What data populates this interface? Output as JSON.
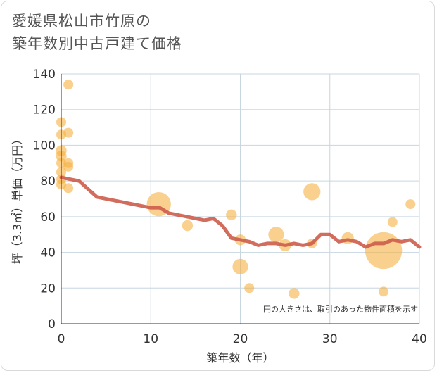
{
  "title": {
    "line1": "愛媛県松山市竹原の",
    "line2": "築年数別中古戸建て価格"
  },
  "chart_data": {
    "type": "scatter",
    "xlabel": "築年数（年）",
    "ylabel": "坪（3.3㎡）単価（万円）",
    "xlim": [
      0,
      40
    ],
    "ylim": [
      0,
      140
    ],
    "xticks": [
      0,
      10,
      20,
      30,
      40
    ],
    "yticks": [
      0,
      20,
      40,
      60,
      80,
      100,
      120,
      140
    ],
    "grid": true,
    "annotation": "円の大きさは、取引のあった物件面積を示す",
    "colors": {
      "bubble": "#f5b041",
      "line": "#cd5c4a",
      "grid": "#c8d6e0"
    },
    "bubbles": [
      {
        "x": 0,
        "y": 113,
        "size": 1
      },
      {
        "x": 0,
        "y": 106,
        "size": 1
      },
      {
        "x": 0,
        "y": 97,
        "size": 1.2
      },
      {
        "x": 0,
        "y": 94,
        "size": 1.2
      },
      {
        "x": 0,
        "y": 90,
        "size": 1
      },
      {
        "x": 0,
        "y": 85,
        "size": 1
      },
      {
        "x": 0,
        "y": 81,
        "size": 1
      },
      {
        "x": 0,
        "y": 78,
        "size": 1
      },
      {
        "x": 0.8,
        "y": 134,
        "size": 1
      },
      {
        "x": 0.8,
        "y": 107,
        "size": 1
      },
      {
        "x": 0.8,
        "y": 90,
        "size": 1
      },
      {
        "x": 0.8,
        "y": 88,
        "size": 1
      },
      {
        "x": 0.8,
        "y": 76,
        "size": 1
      },
      {
        "x": 10.9,
        "y": 67,
        "size": 6
      },
      {
        "x": 14.1,
        "y": 55,
        "size": 1.2
      },
      {
        "x": 19,
        "y": 61,
        "size": 1.2
      },
      {
        "x": 20,
        "y": 47,
        "size": 1.2
      },
      {
        "x": 20,
        "y": 32,
        "size": 2.5
      },
      {
        "x": 21,
        "y": 20,
        "size": 1
      },
      {
        "x": 24,
        "y": 50,
        "size": 2.5
      },
      {
        "x": 25,
        "y": 44,
        "size": 1.5
      },
      {
        "x": 26,
        "y": 17,
        "size": 1.2
      },
      {
        "x": 28,
        "y": 74,
        "size": 3
      },
      {
        "x": 28,
        "y": 45,
        "size": 1
      },
      {
        "x": 32,
        "y": 48,
        "size": 1.5
      },
      {
        "x": 36,
        "y": 41,
        "size": 14
      },
      {
        "x": 36,
        "y": 18,
        "size": 1
      },
      {
        "x": 37,
        "y": 57,
        "size": 1
      },
      {
        "x": 39,
        "y": 67,
        "size": 1
      }
    ],
    "trend_line": {
      "x": [
        0,
        2,
        4,
        6,
        8,
        10,
        11,
        12,
        14,
        16,
        17,
        18,
        19,
        20,
        21,
        22,
        23,
        24,
        25,
        26,
        27,
        28,
        29,
        30,
        31,
        32,
        33,
        34,
        35,
        36,
        37,
        38,
        39,
        40
      ],
      "y": [
        82,
        80,
        71,
        69,
        67,
        65,
        65,
        62,
        60,
        58,
        59,
        55,
        48,
        47,
        46,
        44,
        45,
        45,
        44,
        45,
        44,
        45,
        50,
        50,
        46,
        47,
        46,
        43,
        45,
        45,
        47,
        46,
        47,
        43
      ]
    }
  }
}
